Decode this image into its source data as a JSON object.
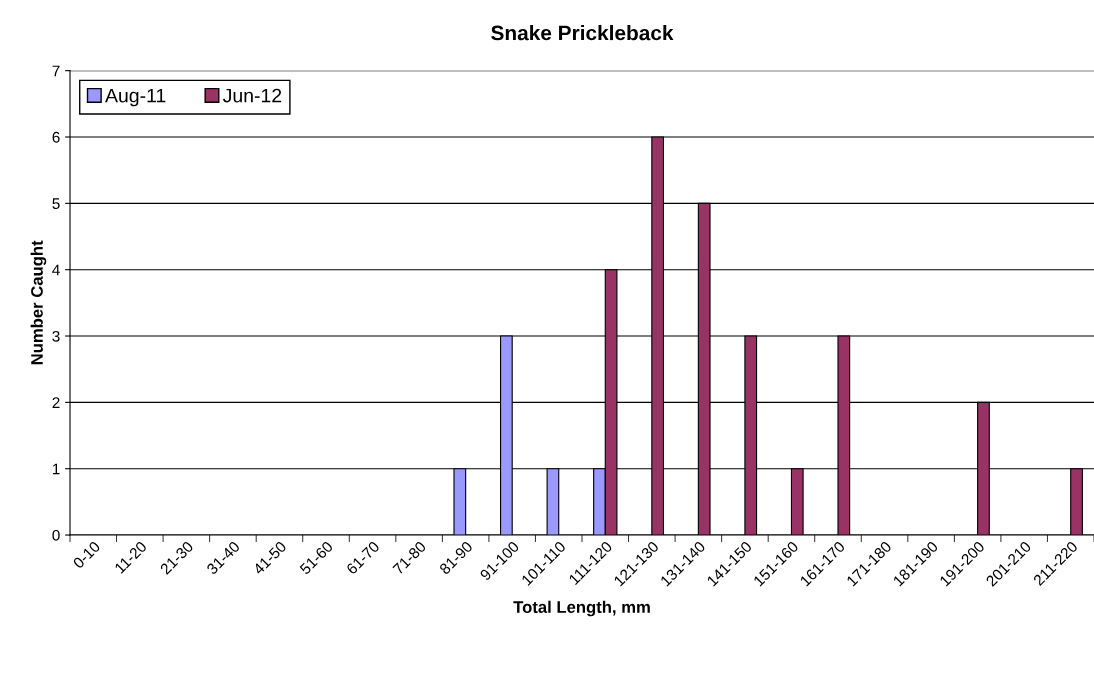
{
  "chart_data": {
    "type": "bar",
    "title": "Snake Prickleback",
    "xlabel": "Total Length, mm",
    "ylabel": "Number Caught",
    "categories": [
      "0-10",
      "11-20",
      "21-30",
      "31-40",
      "41-50",
      "51-60",
      "61-70",
      "71-80",
      "81-90",
      "91-100",
      "101-110",
      "111-120",
      "121-130",
      "131-140",
      "141-150",
      "151-160",
      "161-170",
      "171-180",
      "181-190",
      "191-200",
      "201-210",
      "211-220"
    ],
    "series": [
      {
        "name": "Aug-11",
        "color": "#9999ff",
        "values": [
          0,
          0,
          0,
          0,
          0,
          0,
          0,
          0,
          1,
          3,
          1,
          1,
          0,
          0,
          0,
          0,
          0,
          0,
          0,
          0,
          0,
          0
        ]
      },
      {
        "name": "Jun-12",
        "color": "#993366",
        "values": [
          0,
          0,
          0,
          0,
          0,
          0,
          0,
          0,
          0,
          0,
          0,
          4,
          6,
          5,
          3,
          1,
          3,
          0,
          0,
          2,
          0,
          1
        ]
      }
    ],
    "ylim": [
      0,
      7
    ],
    "yticks": [
      0,
      1,
      2,
      3,
      4,
      5,
      6,
      7
    ],
    "grid": "y",
    "legend": "top left"
  }
}
